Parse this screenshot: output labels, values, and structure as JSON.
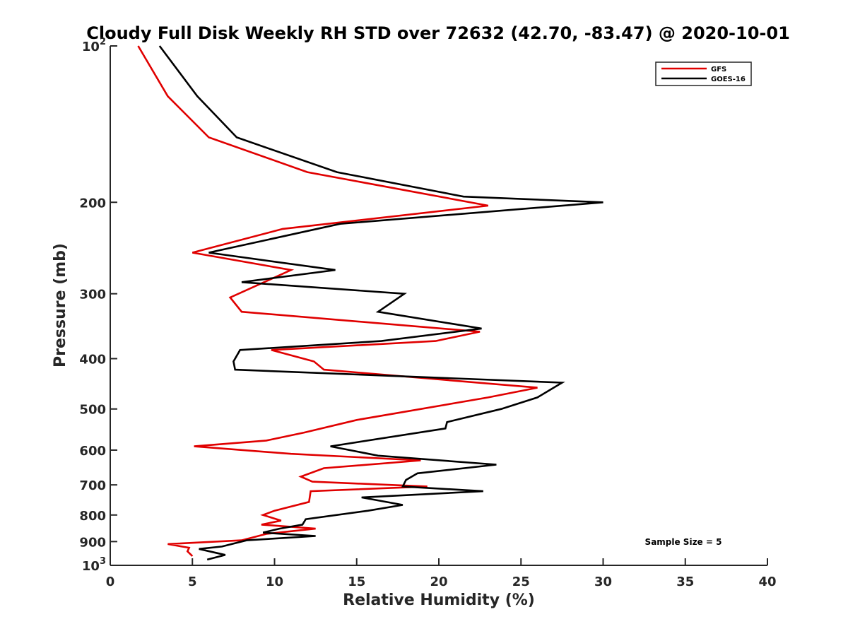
{
  "chart_data": {
    "type": "line",
    "title": "Cloudy Full Disk Weekly RH STD over 72632 (42.70, -83.47) @ 2020-10-01",
    "xlabel": "Relative Humidity (%)",
    "ylabel": "Pressure (mb)",
    "xlim": [
      0,
      40
    ],
    "ylim": [
      1000,
      100
    ],
    "y_scale": "log",
    "y_direction": "reversed",
    "grid": false,
    "legend_position": "top-right",
    "x_ticks": [
      "0",
      "5",
      "10",
      "15",
      "20",
      "25",
      "30",
      "35",
      "40"
    ],
    "y_ticks": [
      {
        "value": 100,
        "base": "10",
        "exp": "2"
      },
      {
        "value": 200,
        "label": "200"
      },
      {
        "value": 300,
        "label": "300"
      },
      {
        "value": 400,
        "label": "400"
      },
      {
        "value": 500,
        "label": "500"
      },
      {
        "value": 600,
        "label": "600"
      },
      {
        "value": 700,
        "label": "700"
      },
      {
        "value": 800,
        "label": "800"
      },
      {
        "value": 900,
        "label": "900"
      },
      {
        "value": 1000,
        "base": "10",
        "exp": "3"
      }
    ],
    "series": [
      {
        "name": "GFS",
        "color": "#e00000",
        "points": [
          [
            1.7,
            100
          ],
          [
            3.5,
            125
          ],
          [
            6.0,
            150
          ],
          [
            12.0,
            175
          ],
          [
            23.0,
            203
          ],
          [
            10.5,
            225
          ],
          [
            5.0,
            250
          ],
          [
            11.0,
            270
          ],
          [
            7.3,
            305
          ],
          [
            8.0,
            325
          ],
          [
            22.5,
            355
          ],
          [
            19.8,
            370
          ],
          [
            9.8,
            385
          ],
          [
            12.4,
            405
          ],
          [
            13.0,
            420
          ],
          [
            26.0,
            455
          ],
          [
            23.0,
            475
          ],
          [
            15.0,
            525
          ],
          [
            11.8,
            555
          ],
          [
            9.5,
            575
          ],
          [
            5.1,
            590
          ],
          [
            11.0,
            610
          ],
          [
            18.9,
            628
          ],
          [
            13.0,
            650
          ],
          [
            11.6,
            675
          ],
          [
            12.3,
            690
          ],
          [
            19.3,
            705
          ],
          [
            12.2,
            720
          ],
          [
            12.1,
            755
          ],
          [
            10.0,
            785
          ],
          [
            9.3,
            800
          ],
          [
            10.4,
            820
          ],
          [
            9.2,
            835
          ],
          [
            12.5,
            850
          ],
          [
            9.5,
            870
          ],
          [
            8.0,
            895
          ],
          [
            3.5,
            910
          ],
          [
            4.8,
            925
          ],
          [
            4.7,
            940
          ],
          [
            5.0,
            960
          ]
        ]
      },
      {
        "name": "GOES-16",
        "color": "#000000",
        "points": [
          [
            3.0,
            100
          ],
          [
            5.3,
            125
          ],
          [
            7.7,
            150
          ],
          [
            13.8,
            175
          ],
          [
            21.5,
            195
          ],
          [
            30.0,
            200
          ],
          [
            14.0,
            220
          ],
          [
            6.0,
            250
          ],
          [
            13.7,
            270
          ],
          [
            8.0,
            285
          ],
          [
            17.9,
            300
          ],
          [
            16.3,
            325
          ],
          [
            22.6,
            350
          ],
          [
            16.5,
            370
          ],
          [
            7.9,
            385
          ],
          [
            7.5,
            405
          ],
          [
            7.6,
            420
          ],
          [
            27.5,
            445
          ],
          [
            26.0,
            475
          ],
          [
            23.8,
            500
          ],
          [
            20.5,
            530
          ],
          [
            20.4,
            545
          ],
          [
            13.4,
            590
          ],
          [
            16.3,
            615
          ],
          [
            23.5,
            640
          ],
          [
            18.7,
            665
          ],
          [
            18.0,
            685
          ],
          [
            17.8,
            705
          ],
          [
            22.7,
            720
          ],
          [
            15.3,
            740
          ],
          [
            17.8,
            765
          ],
          [
            15.7,
            785
          ],
          [
            11.9,
            815
          ],
          [
            11.7,
            835
          ],
          [
            10.3,
            850
          ],
          [
            9.3,
            865
          ],
          [
            12.5,
            878
          ],
          [
            8.3,
            895
          ],
          [
            6.8,
            920
          ],
          [
            5.4,
            930
          ],
          [
            7.0,
            955
          ],
          [
            5.9,
            975
          ]
        ]
      }
    ],
    "annotation": "Sample Size = 5"
  }
}
